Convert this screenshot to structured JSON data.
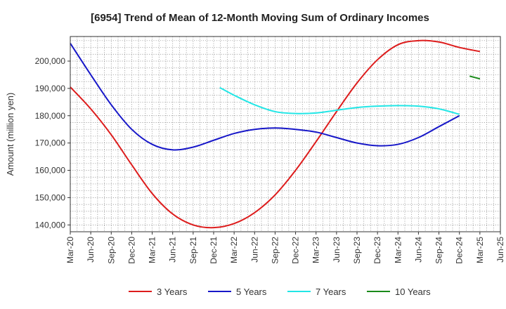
{
  "chart_data": {
    "type": "line",
    "title": "[6954]  Trend of Mean of 12-Month Moving Sum of Ordinary Incomes",
    "xlabel": "",
    "ylabel": "Amount (million yen)",
    "ylim": [
      137500,
      209000
    ],
    "grid": true,
    "legend_position": "bottom",
    "x_tick_labels": [
      "Mar-20",
      "Jun-20",
      "Sep-20",
      "Dec-20",
      "Mar-21",
      "Jun-21",
      "Sep-21",
      "Dec-21",
      "Mar-22",
      "Jun-22",
      "Sep-22",
      "Dec-22",
      "Mar-23",
      "Jun-23",
      "Sep-23",
      "Dec-23",
      "Mar-24",
      "Jun-24",
      "Sep-24",
      "Dec-24",
      "Mar-25",
      "Jun-25"
    ],
    "y_ticks": [
      140000,
      150000,
      160000,
      170000,
      180000,
      190000,
      200000
    ],
    "y_tick_labels": [
      "140,000",
      "150,000",
      "160,000",
      "170,000",
      "180,000",
      "190,000",
      "200,000"
    ],
    "series": [
      {
        "name": "3 Years",
        "color": "#dd1c1c",
        "points": [
          [
            0,
            190500
          ],
          [
            1,
            182500
          ],
          [
            2,
            173000
          ],
          [
            3,
            162000
          ],
          [
            4,
            151500
          ],
          [
            5,
            144000
          ],
          [
            6,
            140000
          ],
          [
            7,
            139000
          ],
          [
            8,
            140500
          ],
          [
            9,
            144500
          ],
          [
            10,
            151000
          ],
          [
            11,
            160000
          ],
          [
            12,
            170500
          ],
          [
            13,
            181500
          ],
          [
            14,
            192000
          ],
          [
            15,
            200500
          ],
          [
            16,
            206000
          ],
          [
            17,
            207500
          ],
          [
            18,
            207000
          ],
          [
            19,
            205000
          ],
          [
            20,
            203500
          ]
        ]
      },
      {
        "name": "5 Years",
        "color": "#1717c8",
        "points": [
          [
            0,
            206500
          ],
          [
            1,
            195000
          ],
          [
            2,
            184000
          ],
          [
            3,
            175000
          ],
          [
            4,
            169500
          ],
          [
            5,
            167500
          ],
          [
            6,
            168500
          ],
          [
            7,
            171000
          ],
          [
            8,
            173500
          ],
          [
            9,
            175000
          ],
          [
            10,
            175500
          ],
          [
            11,
            175000
          ],
          [
            12,
            174000
          ],
          [
            13,
            172000
          ],
          [
            14,
            170000
          ],
          [
            15,
            169000
          ],
          [
            16,
            169500
          ],
          [
            17,
            172000
          ],
          [
            18,
            176000
          ],
          [
            19,
            180000
          ]
        ]
      },
      {
        "name": "7 Years",
        "color": "#22e6e6",
        "points": [
          [
            7.3,
            190300
          ],
          [
            8,
            187500
          ],
          [
            9,
            184000
          ],
          [
            10,
            181500
          ],
          [
            11,
            180800
          ],
          [
            12,
            181000
          ],
          [
            13,
            182000
          ],
          [
            14,
            183000
          ],
          [
            15,
            183500
          ],
          [
            16,
            183700
          ],
          [
            17,
            183500
          ],
          [
            18,
            182500
          ],
          [
            19,
            180500
          ]
        ]
      },
      {
        "name": "10 Years",
        "color": "#1a8a1a",
        "points": [
          [
            19.5,
            194500
          ],
          [
            20,
            193500
          ]
        ]
      }
    ]
  }
}
